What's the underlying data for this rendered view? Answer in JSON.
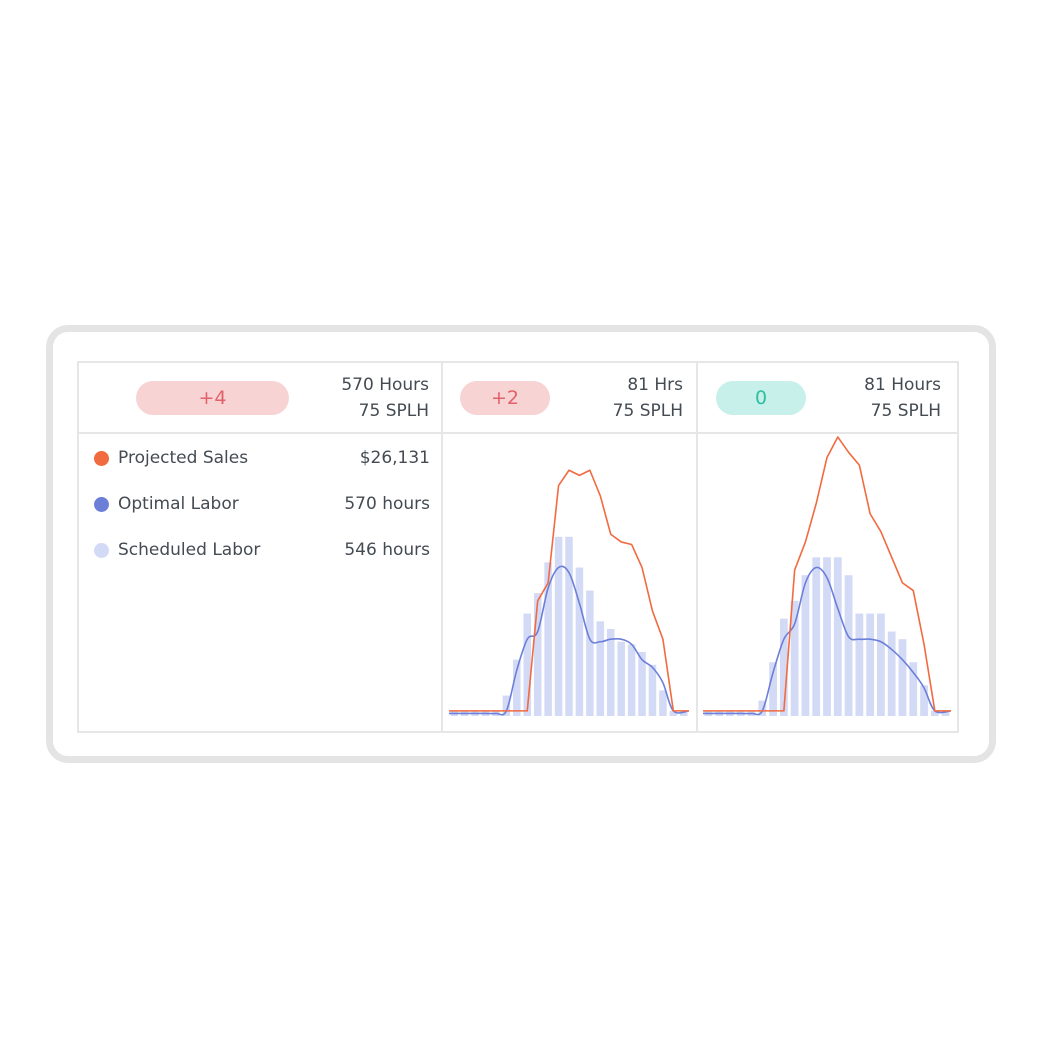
{
  "colors": {
    "sales": "#f26a3f",
    "optimal": "#6c7fd8",
    "scheduled": "#d3daf5",
    "pill_negative_bg": "#f7d3d4",
    "pill_negative_text": "#e0626a",
    "pill_zero_bg": "#c6f0e9",
    "pill_zero_text": "#2fbfa3"
  },
  "columns": [
    {
      "badge": "+4",
      "badge_kind": "negative",
      "line1": "570 Hours",
      "line2": "75 SPLH"
    },
    {
      "badge": "+2",
      "badge_kind": "negative",
      "line1": "81 Hrs",
      "line2": "75 SPLH"
    },
    {
      "badge": "0",
      "badge_kind": "zero",
      "line1": "81 Hours",
      "line2": "75 SPLH"
    }
  ],
  "legend": [
    {
      "label": "Projected Sales",
      "value": "$26,131",
      "color_key": "sales"
    },
    {
      "label": "Optimal Labor",
      "value": "570 hours",
      "color_key": "optimal"
    },
    {
      "label": "Scheduled Labor",
      "value": "546 hours",
      "color_key": "scheduled"
    }
  ],
  "chart_data": [
    {
      "type": "bar",
      "ylim": [
        0,
        100
      ],
      "series": [
        {
          "name": "Scheduled Labor",
          "type": "bar",
          "values": [
            2,
            2,
            2,
            2,
            2,
            8,
            22,
            40,
            48,
            60,
            70,
            70,
            58,
            49,
            37,
            34,
            29,
            28,
            25,
            20,
            10,
            2,
            2
          ]
        },
        {
          "name": "Optimal Labor",
          "type": "line",
          "values": [
            1,
            1,
            1,
            1,
            1,
            2,
            18,
            30,
            33,
            50,
            58,
            56,
            44,
            30,
            29,
            30,
            30,
            28,
            22,
            19,
            13,
            2,
            2
          ]
        },
        {
          "name": "Projected Sales",
          "type": "line",
          "values": [
            2,
            2,
            2,
            2,
            2,
            2,
            2,
            2,
            45,
            52,
            90,
            96,
            94,
            96,
            86,
            71,
            68,
            67,
            58,
            41,
            30,
            2,
            2
          ]
        }
      ]
    },
    {
      "type": "bar",
      "ylim": [
        0,
        100
      ],
      "series": [
        {
          "name": "Scheduled Labor",
          "type": "bar",
          "values": [
            2,
            2,
            2,
            2,
            2,
            6,
            21,
            38,
            45,
            55,
            62,
            62,
            62,
            55,
            40,
            40,
            40,
            33,
            30,
            21,
            12,
            2,
            2
          ]
        },
        {
          "name": "Optimal Labor",
          "type": "line",
          "values": [
            1,
            1,
            1,
            1,
            1,
            2,
            17,
            30,
            36,
            52,
            58,
            54,
            42,
            31,
            30,
            30,
            29,
            26,
            22,
            17,
            11,
            2,
            2
          ]
        },
        {
          "name": "Projected Sales",
          "type": "line",
          "values": [
            2,
            2,
            2,
            2,
            2,
            2,
            2,
            2,
            57,
            68,
            83,
            101,
            109,
            103,
            98,
            79,
            72,
            62,
            52,
            49,
            28,
            2,
            2
          ]
        }
      ]
    }
  ]
}
